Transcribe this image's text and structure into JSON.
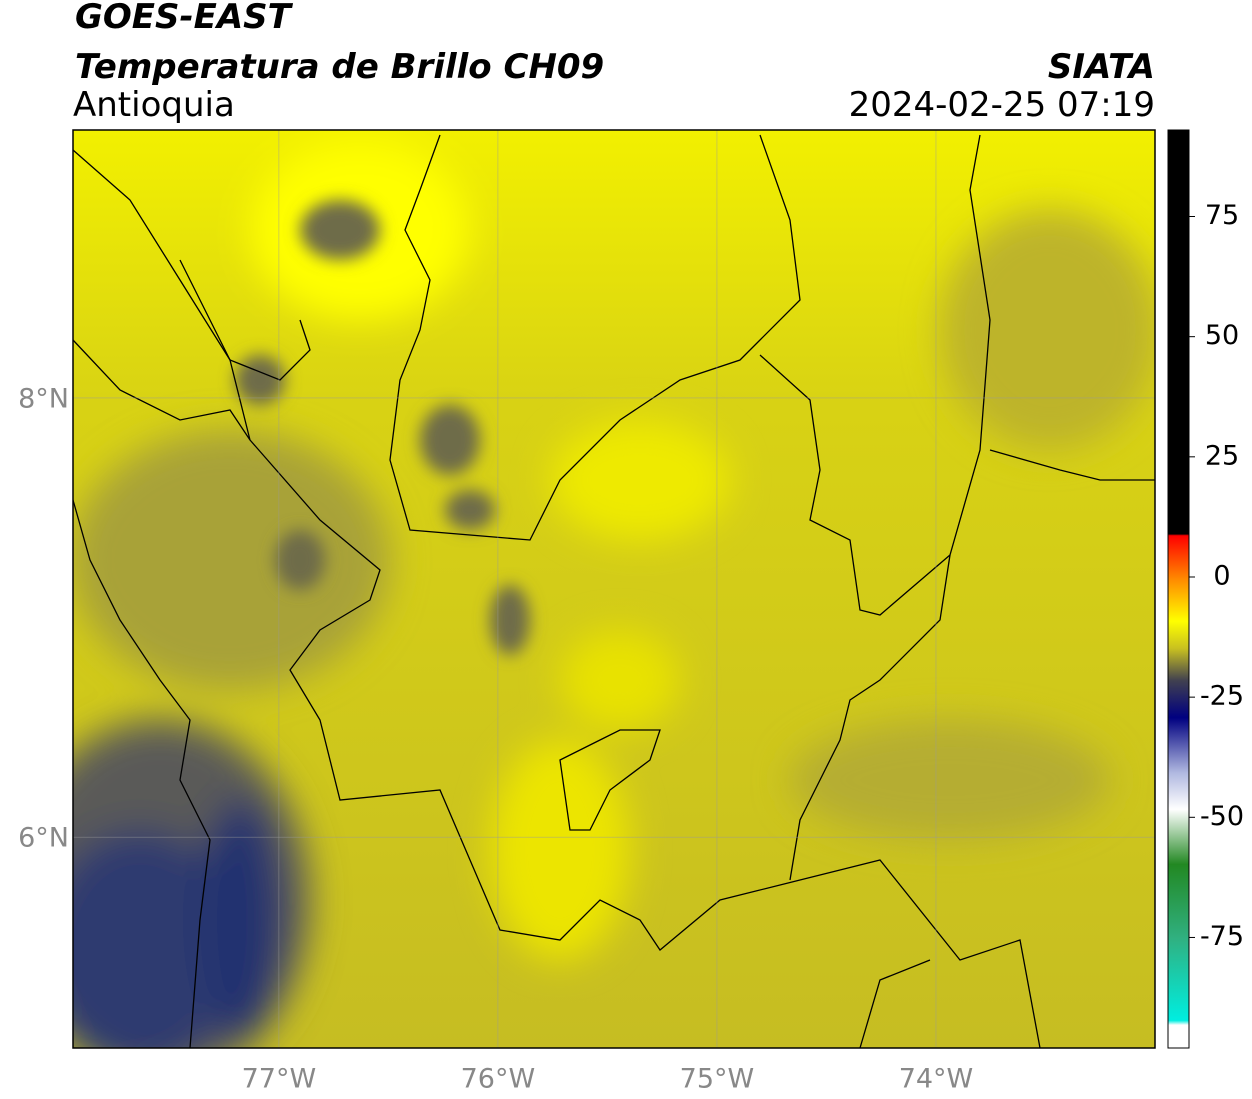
{
  "header": {
    "title": "GOES-EAST",
    "subtitle": "Temperatura de Brillo CH09",
    "region": "Antioquia",
    "source": "SIATA",
    "datetime": "2024-02-25 07:19"
  },
  "map": {
    "xlim": [
      -77.94,
      -73
    ],
    "ylim": [
      5.04,
      9.22
    ],
    "xticks": [
      {
        "value": -77,
        "label": "77°W"
      },
      {
        "value": -76,
        "label": "76°W"
      },
      {
        "value": -75,
        "label": "75°W"
      },
      {
        "value": -74,
        "label": "74°W"
      }
    ],
    "yticks": [
      {
        "value": 8,
        "label": "8°N"
      },
      {
        "value": 6,
        "label": "6°N"
      }
    ],
    "grid": true
  },
  "colorbar": {
    "clim": [
      -98,
      93
    ],
    "ticks": [
      75,
      50,
      25,
      0,
      -25,
      -50,
      -75
    ]
  }
}
